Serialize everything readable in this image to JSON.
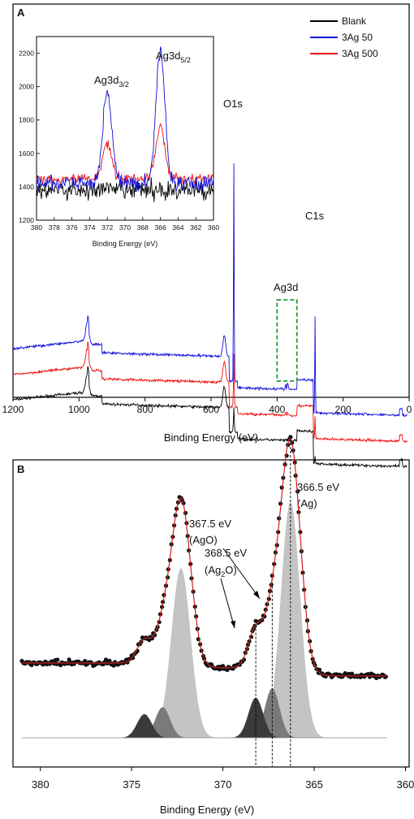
{
  "colors": {
    "blank": "#000000",
    "ag50": "#1010dd",
    "ag500": "#ee1111",
    "box": "#229933",
    "fit": "#d02020",
    "points": "#111111"
  },
  "chart_data": [
    {
      "panel": "A",
      "type": "line",
      "xlabel": "Binding Energy (eV)",
      "ylabel": "",
      "xlim": [
        1200,
        0
      ],
      "x_reversed": true,
      "xticks": [
        "1200",
        "1000",
        "800",
        "600",
        "400",
        "200",
        "0"
      ],
      "legend": {
        "placement": "top-right",
        "entries": [
          "Blank",
          "3Ag 50",
          "3Ag 500"
        ]
      },
      "series": [
        {
          "name": "Blank",
          "color": "#000000",
          "peaks_eV": [
            975,
            560,
            531,
            285
          ]
        },
        {
          "name": "3Ag 50",
          "color": "#1010dd",
          "peaks_eV": [
            975,
            560,
            531,
            374,
            368,
            285
          ]
        },
        {
          "name": "3Ag 500",
          "color": "#ee1111",
          "peaks_eV": [
            975,
            560,
            531,
            374,
            368,
            285
          ]
        }
      ],
      "annotations": [
        {
          "text": "O1s",
          "x": 531
        },
        {
          "text": "C1s",
          "x": 285
        },
        {
          "text": "Ag3d",
          "x": 370
        }
      ],
      "highlight_box": {
        "x_range": [
          400,
          340
        ],
        "color": "#229933",
        "style": "dashed"
      },
      "inset": {
        "type": "line",
        "xlabel": "Binding Energy (eV)",
        "xlim": [
          380,
          360
        ],
        "ylim": [
          1200,
          2300
        ],
        "xticks": [
          "380",
          "378",
          "376",
          "374",
          "372",
          "370",
          "368",
          "366",
          "364",
          "362",
          "360"
        ],
        "yticks": [
          "1200",
          "1400",
          "1600",
          "1800",
          "2000",
          "2200"
        ],
        "peak_labels": [
          {
            "base": "Ag3d",
            "sub": "3/2",
            "x": 372
          },
          {
            "base": "Ag3d",
            "sub": "5/2",
            "x": 366
          }
        ],
        "series": [
          {
            "name": "Blank",
            "baseline": 1380,
            "peaks": []
          },
          {
            "name": "3Ag 50",
            "baseline": 1420,
            "peaks": [
              {
                "x": 372.0,
                "y": 1980
              },
              {
                "x": 366.0,
                "y": 2210
              }
            ]
          },
          {
            "name": "3Ag 500",
            "baseline": 1450,
            "peaks": [
              {
                "x": 372.0,
                "y": 1660
              },
              {
                "x": 366.0,
                "y": 1760
              }
            ]
          }
        ]
      }
    },
    {
      "panel": "B",
      "type": "scatter",
      "xlabel": "Binding Energy (eV)",
      "xlim": [
        381.5,
        359.8
      ],
      "x_reversed": true,
      "xticks": [
        "380",
        "375",
        "370",
        "365",
        "360"
      ],
      "baseline_x_range": [
        381,
        361
      ],
      "components": [
        {
          "center": 366.3,
          "height": 1.0,
          "fwhm": 1.25,
          "shade": "#c4c4c4"
        },
        {
          "center": 372.3,
          "height": 0.72,
          "fwhm": 1.25,
          "shade": "#c4c4c4"
        },
        {
          "center": 367.3,
          "height": 0.21,
          "fwhm": 0.95,
          "shade": "#7a7a7a"
        },
        {
          "center": 373.3,
          "height": 0.13,
          "fwhm": 0.95,
          "shade": "#7a7a7a"
        },
        {
          "center": 368.2,
          "height": 0.17,
          "fwhm": 0.95,
          "shade": "#3a3a3a"
        },
        {
          "center": 374.3,
          "height": 0.1,
          "fwhm": 0.95,
          "shade": "#3a3a3a"
        }
      ],
      "annotations": [
        {
          "lines": [
            "366.5 eV",
            "(Ag)"
          ],
          "x": 366.5
        },
        {
          "lines": [
            "367.5 eV",
            "(AgO)"
          ],
          "x": 367.5
        },
        {
          "lines_html": [
            "368.5 eV",
            "(Ag",
            "2",
            "O)"
          ],
          "x": 368.5
        }
      ]
    }
  ]
}
